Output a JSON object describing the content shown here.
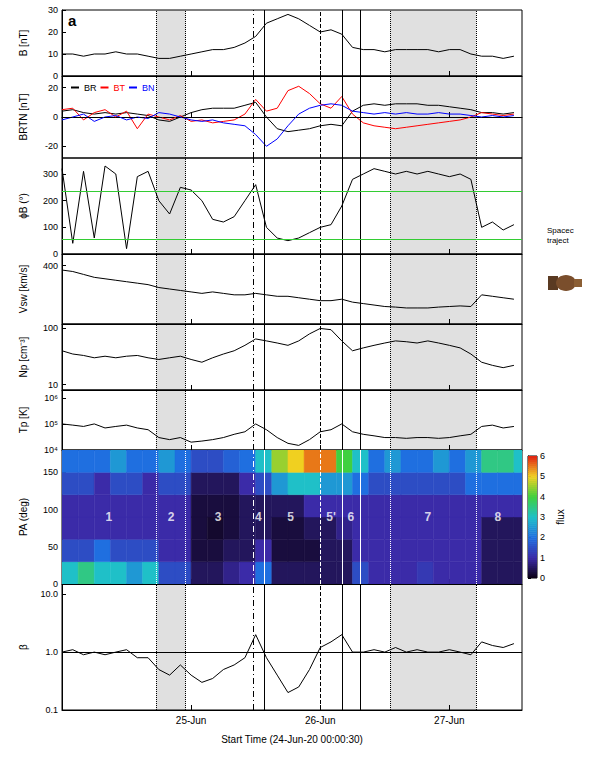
{
  "chart_data": {
    "type": "stacked_panels",
    "x_label": "Start Time (24-Jun-20 00:00:30)",
    "xlim": [
      0,
      85.5
    ],
    "xticks": [
      {
        "value": 24,
        "label": "25-Jun"
      },
      {
        "value": 48,
        "label": "26-Jun"
      },
      {
        "value": 72,
        "label": "27-Jun"
      }
    ],
    "x": [
      0,
      2,
      4,
      6,
      8,
      10,
      12,
      14,
      16,
      18,
      20,
      22,
      24,
      26,
      28,
      30,
      32,
      34,
      36,
      38,
      40,
      42,
      44,
      46,
      48,
      50,
      52,
      54,
      56,
      58,
      60,
      62,
      64,
      66,
      68,
      70,
      72,
      74,
      76,
      78,
      80,
      82,
      84
    ],
    "panel_letter": "a",
    "shaded": [
      [
        17.5,
        23
      ],
      [
        61,
        77
      ]
    ],
    "vlines": [
      {
        "x": 17.5,
        "line_style": "dotted"
      },
      {
        "x": 23,
        "line_style": "dotted"
      },
      {
        "x": 35.5,
        "line_style": "dashdot"
      },
      {
        "x": 37.5,
        "line_style": "solid"
      },
      {
        "x": 48,
        "line_style": "dashed"
      },
      {
        "x": 52,
        "line_style": "solid"
      },
      {
        "x": 55.5,
        "line_style": "solid"
      },
      {
        "x": 61,
        "line_style": "dotted"
      },
      {
        "x": 77,
        "line_style": "dotted"
      }
    ],
    "side_texts": [
      "Spacec",
      "traject"
    ],
    "panels": [
      {
        "type": "line",
        "ylabel": "B [nT]",
        "ylim": [
          0,
          30
        ],
        "yticks": [
          0,
          10,
          20,
          30
        ],
        "series": [
          {
            "color": "#000000",
            "values": [
              10,
              10,
              9,
              10,
              10,
              11,
              10,
              10,
              9,
              8,
              8,
              9,
              10,
              11,
              12,
              12,
              13,
              15,
              18,
              24,
              26,
              28,
              26,
              23,
              20,
              21,
              19,
              13,
              12,
              12,
              11,
              12,
              12,
              12,
              12,
              11,
              12,
              12,
              10,
              9,
              9,
              8,
              9
            ]
          }
        ]
      },
      {
        "type": "line",
        "ylabel": "BRTN [nT]",
        "ylim": [
          -28,
          28
        ],
        "yticks": [
          -20,
          0,
          20
        ],
        "legend": "top-left",
        "hlines": [
          {
            "value": 0,
            "line_style": "dashed",
            "color": "#000000"
          }
        ],
        "series": [
          {
            "name": "BR",
            "color": "#000000",
            "values": [
              4,
              5,
              3,
              2,
              3,
              2,
              3,
              2,
              1,
              -2,
              -3,
              0,
              3,
              5,
              6,
              6,
              6,
              8,
              10,
              0,
              -8,
              -10,
              -9,
              -8,
              -6,
              -5,
              -6,
              4,
              8,
              9,
              8,
              9,
              9,
              9,
              8,
              8,
              7,
              6,
              5,
              3,
              3,
              2,
              3
            ]
          },
          {
            "name": "BT",
            "color": "#ff0000",
            "values": [
              5,
              6,
              -2,
              3,
              5,
              0,
              4,
              -8,
              2,
              0,
              -2,
              1,
              -3,
              -2,
              -4,
              -3,
              -2,
              2,
              12,
              4,
              6,
              18,
              21,
              16,
              9,
              6,
              14,
              2,
              -4,
              -6,
              -7,
              -8,
              -7,
              -6,
              -5,
              -4,
              -3,
              -2,
              0,
              3,
              2,
              1,
              2
            ]
          },
          {
            "name": "BN",
            "color": "#0000ff",
            "values": [
              -2,
              0,
              2,
              -3,
              0,
              1,
              -2,
              0,
              -1,
              3,
              2,
              0,
              -2,
              -3,
              -2,
              -4,
              -5,
              -6,
              -12,
              -20,
              -15,
              -6,
              2,
              6,
              8,
              9,
              8,
              4,
              3,
              2,
              3,
              2,
              3,
              2,
              2,
              3,
              2,
              2,
              1,
              0,
              1,
              0,
              1
            ]
          }
        ]
      },
      {
        "type": "line",
        "ylabel": "ϕB (°)",
        "ylim": [
          0,
          360
        ],
        "yticks": [
          0,
          100,
          200,
          300
        ],
        "hlines": [
          {
            "value": 55,
            "line_style": "solid",
            "color": "#33cc33"
          },
          {
            "value": 235,
            "line_style": "solid",
            "color": "#33cc33"
          }
        ],
        "series": [
          {
            "color": "#000000",
            "values": [
              320,
              40,
              310,
              60,
              330,
              300,
              20,
              290,
              310,
              200,
              150,
              250,
              240,
              200,
              130,
              120,
              140,
              200,
              260,
              100,
              60,
              50,
              60,
              80,
              100,
              110,
              180,
              280,
              300,
              320,
              310,
              300,
              310,
              300,
              310,
              300,
              290,
              300,
              280,
              100,
              120,
              90,
              110
            ]
          }
        ]
      },
      {
        "type": "line",
        "ylabel": "Vsw [km/s]",
        "ylim": [
          200,
          440
        ],
        "yticks": [
          400
        ],
        "series": [
          {
            "color": "#000000",
            "values": [
              385,
              380,
              370,
              360,
              355,
              350,
              345,
              340,
              335,
              325,
              320,
              315,
              310,
              305,
              310,
              305,
              300,
              300,
              305,
              300,
              295,
              295,
              290,
              285,
              280,
              280,
              285,
              275,
              270,
              265,
              260,
              258,
              255,
              255,
              255,
              258,
              260,
              262,
              260,
              300,
              295,
              290,
              285
            ]
          }
        ]
      },
      {
        "type": "line",
        "ylabel": "Np [cm⁻³]",
        "log": "y",
        "ylim": [
          8,
          120
        ],
        "yticks": [
          10,
          100
        ],
        "series": [
          {
            "color": "#000000",
            "values": [
              40,
              35,
              33,
              30,
              32,
              30,
              32,
              33,
              30,
              28,
              30,
              32,
              28,
              25,
              30,
              35,
              40,
              50,
              65,
              60,
              55,
              50,
              60,
              80,
              100,
              95,
              60,
              40,
              45,
              50,
              55,
              60,
              58,
              55,
              60,
              55,
              50,
              45,
              35,
              25,
              22,
              20,
              22
            ]
          }
        ]
      },
      {
        "type": "line",
        "ylabel": "Tp [K]",
        "log": "y",
        "ylim": [
          10000,
          2000000
        ],
        "yticks": [
          {
            "value": 10000,
            "label": "10⁴"
          },
          {
            "value": 100000,
            "label": "10⁵"
          },
          {
            "value": 1000000,
            "label": "10⁶"
          }
        ],
        "series": [
          {
            "color": "#000000",
            "values": [
              100000,
              90000,
              80000,
              100000,
              70000,
              80000,
              90000,
              70000,
              60000,
              30000,
              25000,
              30000,
              20000,
              22000,
              25000,
              30000,
              40000,
              50000,
              100000,
              60000,
              30000,
              18000,
              15000,
              25000,
              50000,
              60000,
              100000,
              50000,
              40000,
              35000,
              30000,
              30000,
              28000,
              30000,
              30000,
              28000,
              30000,
              35000,
              40000,
              80000,
              90000,
              70000,
              80000
            ]
          }
        ]
      },
      {
        "type": "heatmap",
        "ylabel": "PA (deg)",
        "ylim": [
          0,
          180
        ],
        "yticks": [
          0,
          50,
          100,
          150
        ],
        "time_bins": [
          0,
          3,
          6,
          9,
          12,
          15,
          18,
          21,
          24,
          27,
          30,
          33,
          36,
          39,
          42,
          45,
          48,
          51,
          54,
          57,
          60,
          63,
          66,
          69,
          72,
          75,
          78,
          81,
          84,
          87
        ],
        "pa_bins": [
          0,
          30,
          60,
          90,
          120,
          150,
          180
        ],
        "cells": [
          [
            3,
            1.5,
            1,
            1,
            1.5,
            2
          ],
          [
            3.5,
            1.5,
            1,
            1,
            1.5,
            2
          ],
          [
            3,
            2,
            1,
            1,
            1,
            2
          ],
          [
            3,
            1.5,
            1,
            1,
            1.5,
            2.5
          ],
          [
            2.5,
            1.5,
            1,
            1,
            1.5,
            2
          ],
          [
            3,
            1.5,
            1,
            1,
            1,
            2
          ],
          [
            1.5,
            1,
            1,
            1,
            1.5,
            2.5
          ],
          [
            1.5,
            1,
            1,
            1,
            1.5,
            2
          ],
          [
            0.5,
            0.3,
            0.3,
            0.3,
            0.5,
            1.5
          ],
          [
            0.5,
            0.3,
            0.2,
            0.3,
            0.5,
            1.5
          ],
          [
            0.8,
            0.5,
            0.3,
            0.3,
            0.5,
            1.8
          ],
          [
            1,
            0.5,
            0.5,
            0.5,
            1,
            2
          ],
          [
            2,
            1,
            0.5,
            0.5,
            1.5,
            3
          ],
          [
            0.5,
            0.3,
            0.3,
            0.5,
            2.5,
            4.5
          ],
          [
            0.5,
            0.3,
            0.3,
            0.5,
            3,
            5
          ],
          [
            0.5,
            0.3,
            0.5,
            1,
            3,
            5.5
          ],
          [
            0.5,
            0.5,
            0.5,
            1,
            2.5,
            5.5
          ],
          [
            0.5,
            0.5,
            0.8,
            1,
            2.5,
            4
          ],
          [
            1.5,
            1,
            1,
            1,
            2,
            3
          ],
          [
            1,
            1,
            1,
            1,
            1.5,
            2
          ],
          [
            1,
            1,
            1,
            1,
            1.5,
            2.5
          ],
          [
            1,
            1,
            1,
            1,
            1.5,
            2
          ],
          [
            1.2,
            1,
            1,
            1,
            1.5,
            2
          ],
          [
            1,
            1,
            1,
            1,
            1.5,
            2.5
          ],
          [
            1,
            1,
            1,
            1,
            1.5,
            2
          ],
          [
            1,
            1,
            1,
            1,
            2,
            2.5
          ],
          [
            0.5,
            0.5,
            0.5,
            1,
            2,
            3.5
          ],
          [
            0.5,
            0.5,
            0.5,
            1,
            2,
            3.5
          ],
          [
            0.5,
            0.5,
            0.5,
            1,
            2,
            3
          ]
        ],
        "labels": [
          {
            "x": 8.7,
            "y": 90,
            "text": "1"
          },
          {
            "x": 20.3,
            "y": 90,
            "text": "2"
          },
          {
            "x": 29,
            "y": 90,
            "text": "3"
          },
          {
            "x": 36.5,
            "y": 90,
            "text": "4"
          },
          {
            "x": 42.5,
            "y": 90,
            "text": "5"
          },
          {
            "x": 50,
            "y": 90,
            "text": "5'"
          },
          {
            "x": 53.7,
            "y": 90,
            "text": "6"
          },
          {
            "x": 68,
            "y": 90,
            "text": "7"
          },
          {
            "x": 81,
            "y": 90,
            "text": "8"
          }
        ]
      },
      {
        "type": "line",
        "ylabel": "β",
        "log": "y",
        "ylim": [
          0.1,
          15
        ],
        "yticks": [
          0.1,
          {
            "value": 1,
            "label": "1.0"
          },
          {
            "value": 10,
            "label": "10.0"
          }
        ],
        "hlines": [
          {
            "value": 1,
            "line_style": "solid",
            "color": "#000000"
          }
        ],
        "series": [
          {
            "color": "#000000",
            "values": [
              1.0,
              1.1,
              0.9,
              1.0,
              0.9,
              1.0,
              1.1,
              0.8,
              0.8,
              0.5,
              0.4,
              0.6,
              0.4,
              0.3,
              0.35,
              0.5,
              0.6,
              0.8,
              2.0,
              0.8,
              0.4,
              0.2,
              0.25,
              0.5,
              1.2,
              1.5,
              2.0,
              1.0,
              1.0,
              1.1,
              1.0,
              1.2,
              1.0,
              1.1,
              1.0,
              1.0,
              1.1,
              1.0,
              0.9,
              1.5,
              1.3,
              1.2,
              1.4
            ]
          }
        ]
      }
    ],
    "colorbar": {
      "range": [
        0,
        6
      ],
      "ticks": [
        0,
        1,
        2,
        3,
        4,
        5,
        6
      ],
      "label": "flux"
    }
  }
}
